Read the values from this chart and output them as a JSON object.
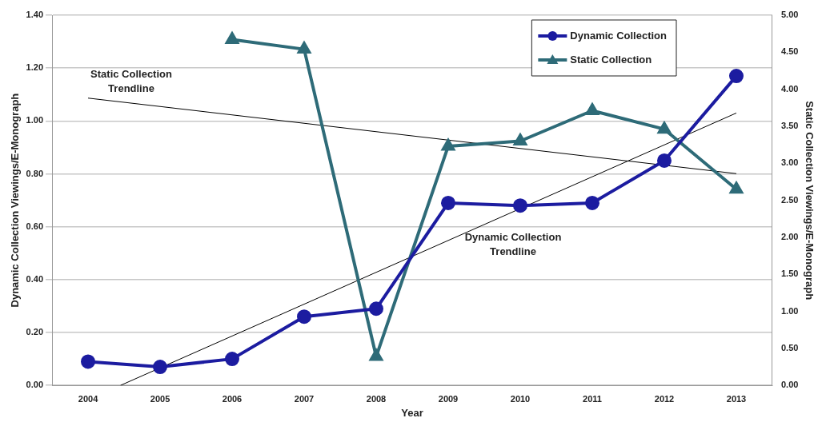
{
  "chart_data": {
    "type": "line",
    "xlabel": "Year",
    "ylabel": "Dynamic Collection Viewings/E-Monograph",
    "y2label": "Static Collection Viewings/E-Monograph",
    "x": [
      2004,
      2005,
      2006,
      2007,
      2008,
      2009,
      2010,
      2011,
      2012,
      2013
    ],
    "xlim": [
      2003.5,
      2013.5
    ],
    "xticks": [
      2004,
      2005,
      2006,
      2007,
      2008,
      2009,
      2010,
      2011,
      2012,
      2013
    ],
    "ylim": [
      0,
      1.4
    ],
    "yticks": [
      {
        "value": 0,
        "label": "0.00"
      },
      {
        "value": 0.2,
        "label": "0.20"
      },
      {
        "value": 0.4,
        "label": "0.40"
      },
      {
        "value": 0.6,
        "label": "0.60"
      },
      {
        "value": 0.8,
        "label": "0.80"
      },
      {
        "value": 1,
        "label": "1.00"
      },
      {
        "value": 1.2,
        "label": "1.20"
      },
      {
        "value": 1.4,
        "label": "1.40"
      }
    ],
    "y2lim": [
      0,
      5
    ],
    "y2ticks": [
      {
        "value": 0,
        "label": "0.00"
      },
      {
        "value": 0.5,
        "label": "0.50"
      },
      {
        "value": 1,
        "label": "1.00"
      },
      {
        "value": 1.5,
        "label": "1.50"
      },
      {
        "value": 2,
        "label": "2.00"
      },
      {
        "value": 2.5,
        "label": "2.50"
      },
      {
        "value": 3,
        "label": "3.00"
      },
      {
        "value": 3.5,
        "label": "3.50"
      },
      {
        "value": 4,
        "label": "4.00"
      },
      {
        "value": 4.5,
        "label": "4.50"
      },
      {
        "value": 5,
        "label": "5.00"
      }
    ],
    "grid": "y",
    "legend": "top right",
    "line_style": "solid",
    "series": [
      {
        "name": "Dynamic Collection",
        "color": "#1c1ca0",
        "marker": "circle",
        "values": [
          0.09,
          0.07,
          0.1,
          0.26,
          0.29,
          0.69,
          0.68,
          0.69,
          0.85,
          1.17
        ]
      },
      {
        "name": "Static Collection",
        "color": "#2e6b78",
        "marker": "triangle",
        "axis": "y2",
        "values": [
          null,
          null,
          4.67,
          4.54,
          0.39,
          3.23,
          3.3,
          3.71,
          3.46,
          2.65
        ]
      },
      {
        "type": "line",
        "color": "#000000",
        "marker": "none",
        "x": [
          2004.45,
          2013
        ],
        "values": [
          0,
          1.03
        ]
      },
      {
        "type": "line",
        "color": "#000000",
        "marker": "none",
        "axis": "y2",
        "x": [
          2004,
          2013
        ],
        "values": [
          3.88,
          2.86
        ]
      }
    ],
    "annotations": [
      "Static Collection\nTrendline",
      "Dynamic Collection\nTrendline"
    ]
  }
}
